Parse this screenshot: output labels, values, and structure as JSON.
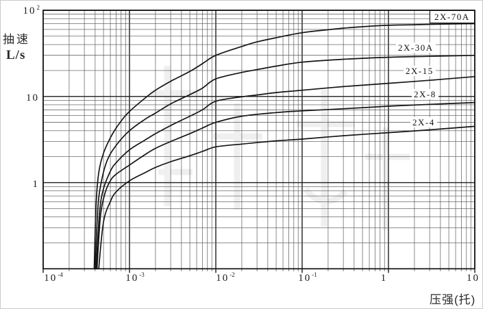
{
  "colors": {
    "background": "#ffffff",
    "curve": "#141414",
    "grid_minor": "#4d4d4d",
    "grid_major": "#1c1c1c",
    "frame": "#111111",
    "text": "#1a1a1a",
    "watermark": "#e3e3e3"
  },
  "chart_data": {
    "type": "line",
    "title": "",
    "xlabel": "压强(托)",
    "ylabel_line1": "抽速",
    "ylabel_line2": "L/s",
    "x_scale": "log",
    "y_scale": "log",
    "xlim": [
      0.0001,
      10
    ],
    "ylim": [
      0.1,
      100
    ],
    "grid": "log minor gridlines on, both axes",
    "legend_position": "labels at right end of each curve",
    "x_ticks": [
      {
        "m": "10",
        "e": "-4"
      },
      {
        "m": "10",
        "e": "-3"
      },
      {
        "m": "10",
        "e": "-2"
      },
      {
        "m": "10",
        "e": "-1"
      },
      {
        "m": "1",
        "e": ""
      },
      {
        "m": "10",
        "e": ""
      }
    ],
    "y_ticks": [
      {
        "m": "10",
        "e": "2"
      },
      {
        "m": "10",
        "e": ""
      },
      {
        "m": "1",
        "e": ""
      }
    ],
    "series": [
      {
        "name": "2X-70A",
        "boxed_label": true,
        "points": [
          [
            0.00039,
            0.1
          ],
          [
            0.00041,
            0.55
          ],
          [
            0.00044,
            1.3
          ],
          [
            0.0005,
            2.2
          ],
          [
            0.0006,
            3.3
          ],
          [
            0.0007,
            4.3
          ],
          [
            0.00085,
            5.6
          ],
          [
            0.001,
            6.7
          ],
          [
            0.0015,
            9.5
          ],
          [
            0.002,
            11.8
          ],
          [
            0.003,
            15
          ],
          [
            0.005,
            19.5
          ],
          [
            0.007,
            24
          ],
          [
            0.01,
            30
          ],
          [
            0.02,
            38
          ],
          [
            0.03,
            43
          ],
          [
            0.05,
            48
          ],
          [
            0.1,
            55
          ],
          [
            0.2,
            59.5
          ],
          [
            0.3,
            62
          ],
          [
            0.5,
            64.5
          ],
          [
            1,
            67
          ],
          [
            2,
            68
          ],
          [
            3,
            68.7
          ],
          [
            5,
            69.3
          ],
          [
            10,
            70
          ]
        ]
      },
      {
        "name": "2X-30A",
        "boxed_label": false,
        "points": [
          [
            0.0004,
            0.1
          ],
          [
            0.00043,
            0.5
          ],
          [
            0.00047,
            1.0
          ],
          [
            0.00055,
            1.8
          ],
          [
            0.0007,
            2.7
          ],
          [
            0.001,
            4.0
          ],
          [
            0.0015,
            5.4
          ],
          [
            0.002,
            6.4
          ],
          [
            0.003,
            8.2
          ],
          [
            0.005,
            10.5
          ],
          [
            0.007,
            12.5
          ],
          [
            0.01,
            16
          ],
          [
            0.02,
            19
          ],
          [
            0.03,
            20.5
          ],
          [
            0.05,
            22.5
          ],
          [
            0.1,
            25
          ],
          [
            0.3,
            27
          ],
          [
            1,
            28.5
          ],
          [
            3,
            29.2
          ],
          [
            10,
            30
          ]
        ]
      },
      {
        "name": "2X-15",
        "boxed_label": false,
        "points": [
          [
            0.00041,
            0.1
          ],
          [
            0.00045,
            0.45
          ],
          [
            0.0005,
            0.85
          ],
          [
            0.0006,
            1.35
          ],
          [
            0.0007,
            1.7
          ],
          [
            0.001,
            2.4
          ],
          [
            0.0015,
            3.1
          ],
          [
            0.002,
            3.7
          ],
          [
            0.003,
            4.6
          ],
          [
            0.005,
            5.9
          ],
          [
            0.007,
            7.0
          ],
          [
            0.01,
            8.8
          ],
          [
            0.02,
            9.9
          ],
          [
            0.03,
            10.4
          ],
          [
            0.05,
            11.1
          ],
          [
            0.1,
            11.8
          ],
          [
            0.3,
            13
          ],
          [
            1,
            14.2
          ],
          [
            3,
            15.4
          ],
          [
            10,
            17
          ]
        ]
      },
      {
        "name": "2X-8",
        "boxed_label": false,
        "points": [
          [
            0.00042,
            0.1
          ],
          [
            0.00046,
            0.4
          ],
          [
            0.00052,
            0.75
          ],
          [
            0.0006,
            1.05
          ],
          [
            0.0007,
            1.25
          ],
          [
            0.001,
            1.6
          ],
          [
            0.0015,
            2.1
          ],
          [
            0.002,
            2.5
          ],
          [
            0.003,
            3.0
          ],
          [
            0.005,
            3.7
          ],
          [
            0.007,
            4.3
          ],
          [
            0.01,
            5.0
          ],
          [
            0.02,
            5.9
          ],
          [
            0.05,
            6.5
          ],
          [
            0.1,
            6.8
          ],
          [
            0.3,
            7.2
          ],
          [
            1,
            7.7
          ],
          [
            3,
            8.1
          ],
          [
            10,
            8.5
          ]
        ]
      },
      {
        "name": "2X-4",
        "boxed_label": false,
        "points": [
          [
            0.00044,
            0.1
          ],
          [
            0.0005,
            0.35
          ],
          [
            0.0006,
            0.6
          ],
          [
            0.0007,
            0.78
          ],
          [
            0.001,
            1.05
          ],
          [
            0.0015,
            1.3
          ],
          [
            0.002,
            1.5
          ],
          [
            0.003,
            1.75
          ],
          [
            0.005,
            2.05
          ],
          [
            0.007,
            2.3
          ],
          [
            0.01,
            2.6
          ],
          [
            0.02,
            2.8
          ],
          [
            0.05,
            3.05
          ],
          [
            0.1,
            3.2
          ],
          [
            0.3,
            3.5
          ],
          [
            1,
            3.8
          ],
          [
            3,
            4.1
          ],
          [
            10,
            4.5
          ]
        ]
      }
    ]
  }
}
